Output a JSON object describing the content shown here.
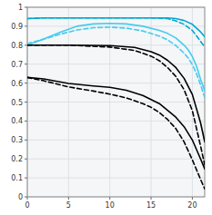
{
  "chart_data": {
    "type": "line",
    "xlim": [
      0,
      21.5
    ],
    "ylim": [
      0,
      1.0
    ],
    "xticks": [
      0,
      5,
      10,
      15,
      20
    ],
    "yticks": [
      0,
      0.1,
      0.2,
      0.3,
      0.4,
      0.5,
      0.6,
      0.7,
      0.8,
      0.9,
      1
    ],
    "grid": true,
    "series": [
      {
        "color": "#00a8d0",
        "line_style": "solid",
        "x": [
          0,
          2,
          5,
          10,
          15,
          17,
          18,
          19,
          20,
          21,
          21.5
        ],
        "values": [
          0.94,
          0.944,
          0.944,
          0.944,
          0.944,
          0.944,
          0.94,
          0.93,
          0.91,
          0.87,
          0.845
        ]
      },
      {
        "color": "#00a8d0",
        "line_style": "dashed",
        "x": [
          0,
          2,
          5,
          10,
          15,
          17,
          18,
          19,
          20,
          21,
          21.5
        ],
        "values": [
          0.94,
          0.944,
          0.944,
          0.944,
          0.944,
          0.94,
          0.928,
          0.91,
          0.878,
          0.82,
          0.79
        ]
      },
      {
        "color": "#44ccee",
        "line_style": "solid",
        "x": [
          0,
          2,
          4,
          6,
          8,
          10,
          12,
          14,
          16,
          17,
          18,
          19,
          19.5,
          20,
          20.5,
          21,
          21.5
        ],
        "values": [
          0.8,
          0.832,
          0.868,
          0.9,
          0.912,
          0.915,
          0.912,
          0.9,
          0.878,
          0.862,
          0.838,
          0.8,
          0.775,
          0.74,
          0.69,
          0.62,
          0.56
        ]
      },
      {
        "color": "#44ccee",
        "line_style": "dashed",
        "x": [
          0,
          2,
          4,
          6,
          8,
          10,
          12,
          14,
          16,
          17,
          18,
          19,
          19.5,
          20,
          20.5,
          21,
          21.5
        ],
        "values": [
          0.808,
          0.832,
          0.858,
          0.88,
          0.892,
          0.895,
          0.89,
          0.875,
          0.848,
          0.828,
          0.798,
          0.758,
          0.732,
          0.698,
          0.65,
          0.59,
          0.525
        ]
      },
      {
        "color": "#000000",
        "line_style": "solid",
        "x": [
          0,
          5,
          10,
          13,
          15,
          16,
          17,
          18,
          19,
          20,
          21,
          21.5
        ],
        "values": [
          0.8,
          0.8,
          0.798,
          0.788,
          0.766,
          0.748,
          0.72,
          0.682,
          0.625,
          0.54,
          0.39,
          0.29
        ]
      },
      {
        "color": "#000000",
        "line_style": "dashed",
        "x": [
          0,
          5,
          10,
          13,
          15,
          16,
          17,
          18,
          19,
          20,
          21,
          21.5
        ],
        "values": [
          0.8,
          0.8,
          0.79,
          0.772,
          0.742,
          0.718,
          0.682,
          0.635,
          0.565,
          0.455,
          0.268,
          0.168
        ]
      },
      {
        "color": "#000000",
        "line_style": "solid",
        "x": [
          0,
          2,
          5,
          8,
          10,
          12,
          14,
          16,
          18,
          19,
          20,
          21,
          21.5
        ],
        "values": [
          0.63,
          0.622,
          0.598,
          0.585,
          0.578,
          0.562,
          0.535,
          0.492,
          0.42,
          0.37,
          0.3,
          0.2,
          0.148
        ]
      },
      {
        "color": "#000000",
        "line_style": "dashed",
        "x": [
          0,
          2,
          5,
          8,
          10,
          12,
          14,
          15,
          16,
          17,
          18,
          19,
          20,
          21,
          21.5
        ],
        "values": [
          0.63,
          0.612,
          0.58,
          0.558,
          0.542,
          0.522,
          0.492,
          0.472,
          0.445,
          0.408,
          0.36,
          0.29,
          0.195,
          0.092,
          0.042
        ]
      }
    ]
  }
}
